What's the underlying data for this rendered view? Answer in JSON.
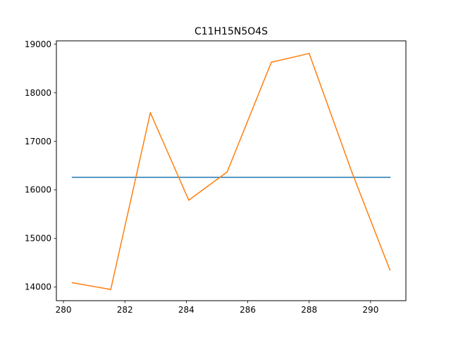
{
  "chart_data": {
    "type": "line",
    "title": "C11H15N5O4S",
    "xlabel": "",
    "ylabel": "",
    "xlim": [
      279.77,
      291.15
    ],
    "ylim": [
      13720,
      19070
    ],
    "xticks": [
      280,
      282,
      284,
      286,
      288,
      290
    ],
    "yticks": [
      14000,
      15000,
      16000,
      17000,
      18000,
      19000
    ],
    "grid": false,
    "series": [
      {
        "color": "#1f77b4",
        "x": [
          280.29,
          290.63
        ],
        "y": [
          16260,
          16260
        ]
      },
      {
        "color": "#ff7f0e",
        "x": [
          280.29,
          281.54,
          282.83,
          284.08,
          285.33,
          286.77,
          288.0,
          289.39,
          290.63
        ],
        "y": [
          14090,
          13950,
          17590,
          15790,
          16370,
          18630,
          18810,
          16370,
          14350
        ]
      }
    ]
  }
}
